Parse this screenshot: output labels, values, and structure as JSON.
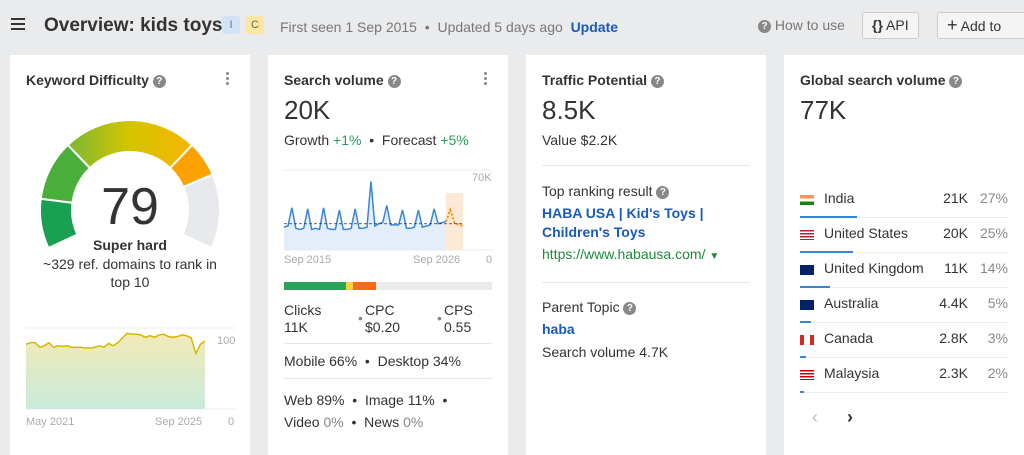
{
  "header": {
    "title": "Overview: kids toys",
    "intent_badges": [
      {
        "label": "I",
        "color": "#d3e3f7"
      },
      {
        "label": "C",
        "color": "#fbe7a1"
      }
    ],
    "first_seen": "First seen 1 Sep 2015",
    "updated": "Updated 5 days ago",
    "update_link": "Update",
    "how_to_use": "How to use",
    "api_label": "API",
    "add_to_label": "Add to"
  },
  "kd": {
    "title": "Keyword Difficulty",
    "value": "79",
    "score": 79,
    "label": "Super hard",
    "description": "~329 ref. domains to rank in top 10",
    "chart": {
      "x_start": "May 2021",
      "x_end": "Sep 2025",
      "y_max": "100",
      "y_min": "0",
      "values": [
        84,
        86,
        86,
        80,
        82,
        86,
        80,
        82,
        81,
        82,
        80,
        80,
        80,
        79,
        79,
        80,
        82,
        80,
        85,
        82,
        86,
        92,
        98,
        97,
        97,
        96,
        93,
        95,
        93,
        96,
        97,
        94,
        93,
        94,
        96,
        95,
        92,
        72,
        84,
        88
      ]
    }
  },
  "sv": {
    "title": "Search volume",
    "value": "20K",
    "growth_label": "Growth",
    "growth": "+1%",
    "forecast_label": "Forecast",
    "forecast": "+5%",
    "chart": {
      "x_start": "Sep 2015",
      "x_end": "Sep 2026",
      "y_max": "70K",
      "y_min": "0",
      "y_max_value": 70000,
      "average": 23000,
      "history": [
        20,
        21,
        37,
        19,
        18,
        19,
        36,
        18,
        19,
        18,
        37,
        19,
        18,
        18,
        35,
        18,
        18,
        19,
        36,
        19,
        19,
        20,
        60,
        21,
        23,
        24,
        39,
        22,
        22,
        22,
        35,
        19,
        19,
        20,
        35,
        20,
        21,
        22,
        36,
        23,
        24,
        25
      ],
      "forecast": [
        35,
        24,
        22,
        21
      ]
    },
    "clicks_bar": [
      {
        "share": 0.3,
        "color": "#2aa25c"
      },
      {
        "share": 0.03,
        "color": "#f5d33a"
      },
      {
        "share": 0.11,
        "color": "#fb6a17"
      }
    ],
    "clicks_label": "Clicks",
    "clicks": "11K",
    "cpc_label": "CPC",
    "cpc": "$0.20",
    "cps_label": "CPS",
    "cps": "0.55",
    "mobile": "Mobile 66%",
    "desktop": "Desktop 34%",
    "web_label": "Web",
    "web": "89%",
    "image_label": "Image",
    "image": "11%",
    "video_label": "Video",
    "video": "0%",
    "news_label": "News",
    "news": "0%"
  },
  "tp": {
    "title": "Traffic Potential",
    "value": "8.5K",
    "value_label": "Value $2.2K",
    "top_ranking_label": "Top ranking result",
    "top_result_title": "HABA USA | Kid's Toys | Children's Toys",
    "top_result_url": "https://www.habausa.com/",
    "parent_topic_label": "Parent Topic",
    "parent_topic": "haba",
    "parent_volume": "Search volume 4.7K"
  },
  "gsv": {
    "title": "Global search volume",
    "value": "77K",
    "countries": [
      {
        "name": "India",
        "volume": "21K",
        "pct": "27%",
        "share": 27
      },
      {
        "name": "United States",
        "volume": "20K",
        "pct": "25%",
        "share": 25
      },
      {
        "name": "United Kingdom",
        "volume": "11K",
        "pct": "14%",
        "share": 14
      },
      {
        "name": "Australia",
        "volume": "4.4K",
        "pct": "5%",
        "share": 5
      },
      {
        "name": "Canada",
        "volume": "2.8K",
        "pct": "3%",
        "share": 3
      },
      {
        "name": "Malaysia",
        "volume": "2.3K",
        "pct": "2%",
        "share": 2
      }
    ]
  }
}
